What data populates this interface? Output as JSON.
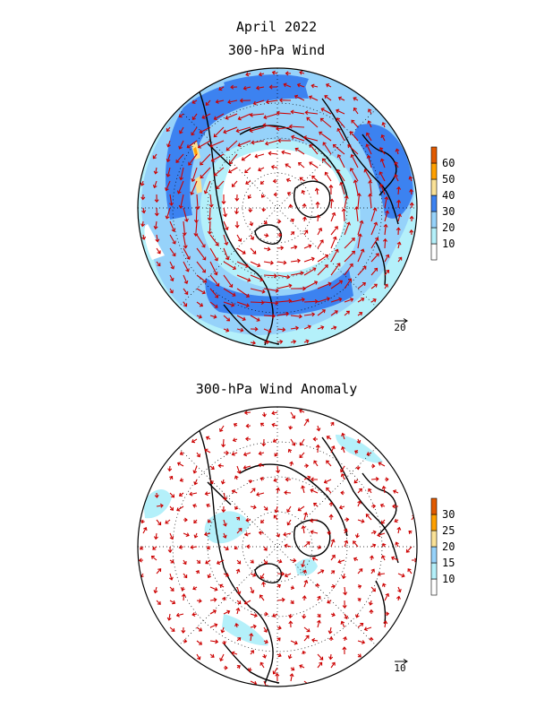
{
  "figure": {
    "title_top": "April 2022",
    "panel1_title": "300-hPa Wind",
    "panel2_title": "300-hPa Wind Anomaly"
  },
  "panels": [
    {
      "name": "wind",
      "reference_vector_label": "20",
      "colorbar": {
        "levels": [
          "10",
          "20",
          "30",
          "40",
          "50",
          "60"
        ],
        "colors": [
          "#ffffff",
          "#b4f0fa",
          "#96d2fa",
          "#3c82f0",
          "#fae196",
          "#ffa000",
          "#e15a00"
        ]
      }
    },
    {
      "name": "wind-anomaly",
      "reference_vector_label": "10",
      "colorbar": {
        "levels": [
          "10",
          "15",
          "20",
          "25",
          "30"
        ],
        "colors": [
          "#ffffff",
          "#b4f0fa",
          "#96d2fa",
          "#fae196",
          "#ffa000",
          "#e15a00"
        ]
      }
    }
  ],
  "colors": {
    "vector": "#cc0000",
    "coast": "#000000",
    "grid": "#000000"
  }
}
